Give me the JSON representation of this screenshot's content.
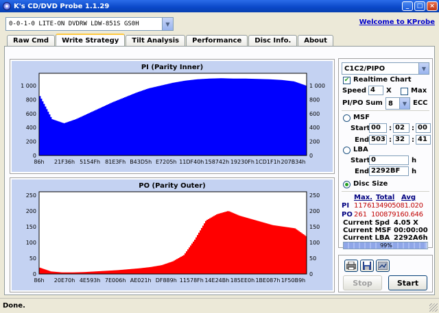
{
  "window": {
    "title": "K's CD/DVD Probe 1.1.29"
  },
  "drive": {
    "selected": "0-0-1-0  LITE-ON DVDRW LDW-851S   GS0H"
  },
  "welcome_link": "Welcome to KProbe",
  "tabs": [
    {
      "label": "Raw Cmd"
    },
    {
      "label": "Write Strategy"
    },
    {
      "label": "Tilt Analysis"
    },
    {
      "label": "Performance"
    },
    {
      "label": "Disc Info."
    },
    {
      "label": "About"
    }
  ],
  "active_tab_index": 1,
  "controls": {
    "mode": "C1C2/PIPO",
    "realtime_chart_label": "Realtime Chart",
    "realtime_chart_checked": true,
    "speed_label": "Speed",
    "speed_value": "4",
    "speed_unit": "X",
    "max_label": "Max",
    "max_checked": false,
    "sum_label": "PI/PO Sum",
    "sum_value": "8",
    "ecc_label": "ECC",
    "msf_label": "MSF",
    "msf_selected": false,
    "start_label": "Start",
    "end_label": "End",
    "msf_start": [
      "00",
      "02",
      "00"
    ],
    "msf_end": [
      "503",
      "32",
      "41"
    ],
    "lba_label": "LBA",
    "lba_selected": false,
    "lba_start": "0",
    "lba_end": "2292BF",
    "hex_unit": "h",
    "disc_size_label": "Disc Size",
    "disc_size_selected": true
  },
  "stats": {
    "headers": [
      "Max.",
      "Total",
      "Avg"
    ],
    "pi": {
      "label": "PI",
      "max": "1176",
      "total": "134905081.020"
    },
    "po": {
      "label": "PO",
      "max": "261",
      "total": "100879160.646"
    },
    "current_spd_label": "Current Spd",
    "current_spd": "4.05 X",
    "current_msf_label": "Current MSF",
    "current_msf": "00:00:00",
    "current_lba_label": "Current LBA",
    "current_lba": "2292A6h",
    "progress_text": "99%",
    "progress_value": 0.99
  },
  "buttons": {
    "stop": "Stop",
    "start": "Start"
  },
  "icons": [
    "printer-icon",
    "save-disk-icon",
    "save-image-icon"
  ],
  "status_text": "Done.",
  "colors": {
    "pi_series": "#0000FF",
    "po_series": "#FF0000",
    "chart_bg": "#C4D2F2"
  },
  "chart_data": [
    {
      "type": "bar",
      "title": "PI (Parity Inner)",
      "x_tick_labels": [
        "86h",
        "21F36h",
        "5154Fh",
        "81E3Fh",
        "B43D5h",
        "E7205h",
        "11DF40h",
        "158742h",
        "19230Fh",
        "1CD1F1h",
        "207B34h"
      ],
      "y_ticks": [
        0,
        200,
        400,
        600,
        800,
        1000
      ],
      "ylim": [
        0,
        1176
      ],
      "series": [
        {
          "values": [
            850,
            520,
            460,
            520,
            600,
            680,
            760,
            830,
            900,
            960,
            1000,
            1040,
            1070,
            1090,
            1100,
            1105,
            1100,
            1100,
            1095,
            1090,
            1080,
            1060,
            1000
          ]
        }
      ]
    },
    {
      "type": "bar",
      "title": "PO (Parity Outer)",
      "x_tick_labels": [
        "86h",
        "20E70h",
        "4E593h",
        "7E006h",
        "AE021h",
        "DF889h",
        "11578Fh",
        "14E24Bh",
        "185EE0h",
        "1BE087h",
        "1F50B9h"
      ],
      "y_ticks": [
        0,
        50,
        100,
        150,
        200,
        250
      ],
      "ylim": [
        0,
        261
      ],
      "series": [
        {
          "values": [
            20,
            8,
            5,
            5,
            6,
            8,
            10,
            12,
            15,
            18,
            22,
            28,
            40,
            60,
            110,
            170,
            190,
            200,
            185,
            175,
            165,
            155,
            150,
            145,
            120
          ]
        }
      ]
    }
  ]
}
